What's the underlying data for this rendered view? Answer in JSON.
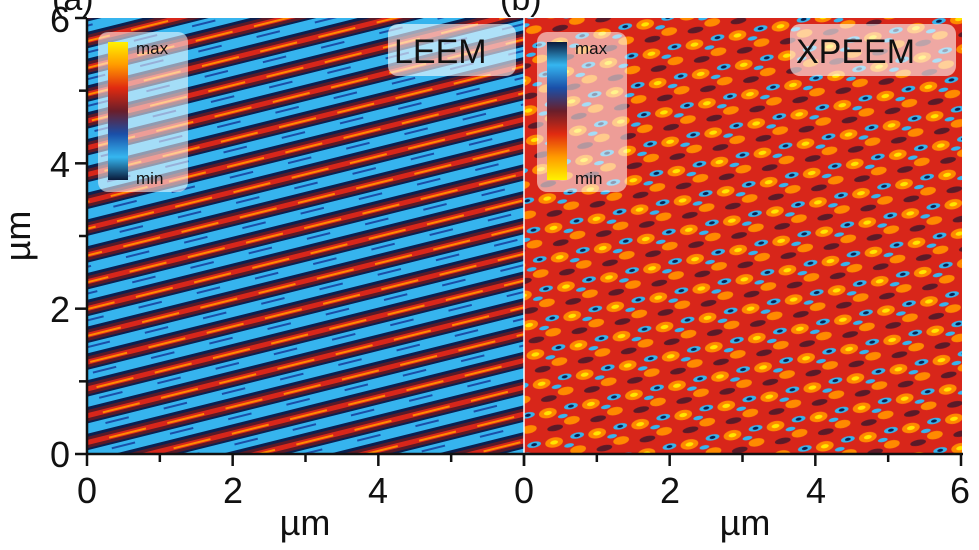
{
  "figure": {
    "partial_label_left": "(a)",
    "partial_label_right": "(b)",
    "y_axis_title": "µm",
    "x_axis_title": "µm",
    "y_ticks": [
      "0",
      "2",
      "4",
      "6"
    ],
    "x_ticks": [
      "0",
      "2",
      "4",
      "0",
      "2",
      "4",
      "6"
    ]
  },
  "panels": [
    {
      "name": "LEEM",
      "label": "LEEM",
      "colorbar": {
        "max_label": "max",
        "min_label": "min",
        "stops": [
          "#fff200",
          "#ff9a00",
          "#e02a10",
          "#6a1e2a",
          "#1a4fa8",
          "#35b6f0",
          "#0a1a3a"
        ]
      },
      "x_range_um": [
        0,
        6
      ],
      "y_range_um": [
        0,
        6
      ]
    },
    {
      "name": "XPEEM",
      "label": "XPEEM",
      "colorbar": {
        "max_label": "max",
        "min_label": "min",
        "stops": [
          "#0a1a3a",
          "#35b6f0",
          "#1a4fa8",
          "#6a1e2a",
          "#e02a10",
          "#ff9a00",
          "#fff200"
        ]
      },
      "x_range_um": [
        0,
        6
      ],
      "y_range_um": [
        0,
        6
      ]
    }
  ],
  "colors": {
    "deep_blue": "#0a2050",
    "cyan": "#36b4ee",
    "red": "#d8261a",
    "orange": "#ff8a00",
    "yellow": "#ffe600",
    "dark_red": "#5a1a28"
  }
}
